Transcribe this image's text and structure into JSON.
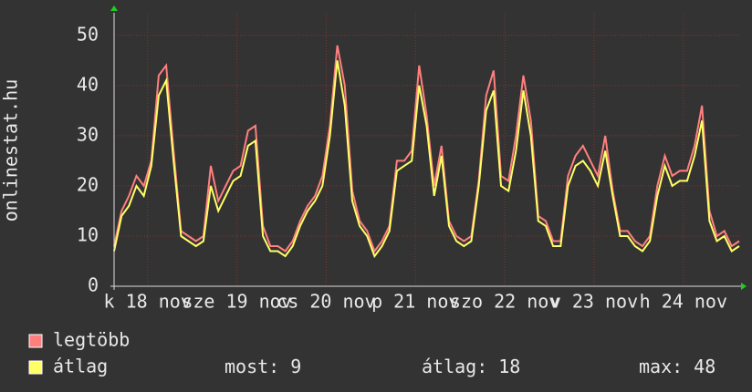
{
  "chart_data": {
    "type": "line",
    "y_label": "onlinestat.hu",
    "x": [
      0,
      2,
      4,
      6,
      8,
      10,
      12,
      14,
      16,
      18,
      20,
      22,
      24,
      26,
      28,
      30,
      32,
      34,
      36,
      38,
      40,
      42,
      44,
      46,
      48,
      50,
      52,
      54,
      56,
      58,
      60,
      62,
      64,
      66,
      68,
      70,
      72,
      74,
      76,
      78,
      80,
      82,
      84,
      86,
      88,
      90,
      92,
      94,
      96,
      98,
      100,
      102,
      104,
      106,
      108,
      110,
      112,
      114,
      116,
      118,
      120,
      122,
      124,
      126,
      128,
      130,
      132,
      134,
      136,
      138,
      140,
      142,
      144,
      146,
      148,
      150,
      152,
      154,
      156,
      158,
      160,
      162,
      164,
      166,
      168
    ],
    "series": [
      {
        "name": "legtöbb",
        "color": "#ff7f7f",
        "values": [
          8,
          15,
          18,
          22,
          20,
          25,
          42,
          44,
          27,
          11,
          10,
          9,
          10,
          24,
          17,
          20,
          23,
          24,
          31,
          32,
          12,
          8,
          8,
          7,
          9,
          13,
          16,
          18,
          22,
          32,
          48,
          40,
          19,
          13,
          11,
          7,
          9,
          12,
          25,
          25,
          27,
          44,
          34,
          20,
          28,
          13,
          10,
          9,
          10,
          21,
          38,
          43,
          22,
          21,
          30,
          42,
          33,
          14,
          13,
          9,
          9,
          22,
          26,
          28,
          25,
          22,
          30,
          19,
          11,
          11,
          9,
          8,
          10,
          20,
          26,
          22,
          23,
          23,
          28,
          36,
          15,
          10,
          11,
          8,
          9
        ]
      },
      {
        "name": "átlag",
        "color": "#ffff66",
        "values": [
          7,
          14,
          16,
          20,
          18,
          24,
          38,
          41,
          25,
          10,
          9,
          8,
          9,
          20,
          15,
          18,
          21,
          22,
          28,
          29,
          10,
          7,
          7,
          6,
          8,
          12,
          15,
          17,
          20,
          30,
          45,
          36,
          17,
          12,
          10,
          6,
          8,
          11,
          23,
          24,
          25,
          40,
          32,
          18,
          26,
          12,
          9,
          8,
          9,
          20,
          35,
          39,
          20,
          19,
          27,
          39,
          30,
          13,
          12,
          8,
          8,
          20,
          24,
          25,
          23,
          20,
          27,
          18,
          10,
          10,
          8,
          7,
          9,
          18,
          24,
          20,
          21,
          21,
          26,
          33,
          13,
          9,
          10,
          7,
          8
        ]
      }
    ],
    "xlim": [
      0,
      168
    ],
    "xticks": [
      {
        "value": 9,
        "label": "k 18 nov"
      },
      {
        "value": 33,
        "label": "sze 19 nov"
      },
      {
        "value": 57,
        "label": "cs 20 nov"
      },
      {
        "value": 81,
        "label": "p 21 nov"
      },
      {
        "value": 105,
        "label": "szo 22 nov"
      },
      {
        "value": 129,
        "label": "v 23 nov"
      },
      {
        "value": 153,
        "label": "h 24 nov"
      }
    ],
    "ylim": [
      0,
      54.5
    ],
    "yticks": [
      0,
      10,
      20,
      30,
      40,
      50
    ],
    "grid": true,
    "stats": [
      {
        "label": "most:",
        "value": 9
      },
      {
        "label": "átlag:",
        "value": 18
      },
      {
        "label": "max:",
        "value": 48
      }
    ]
  }
}
